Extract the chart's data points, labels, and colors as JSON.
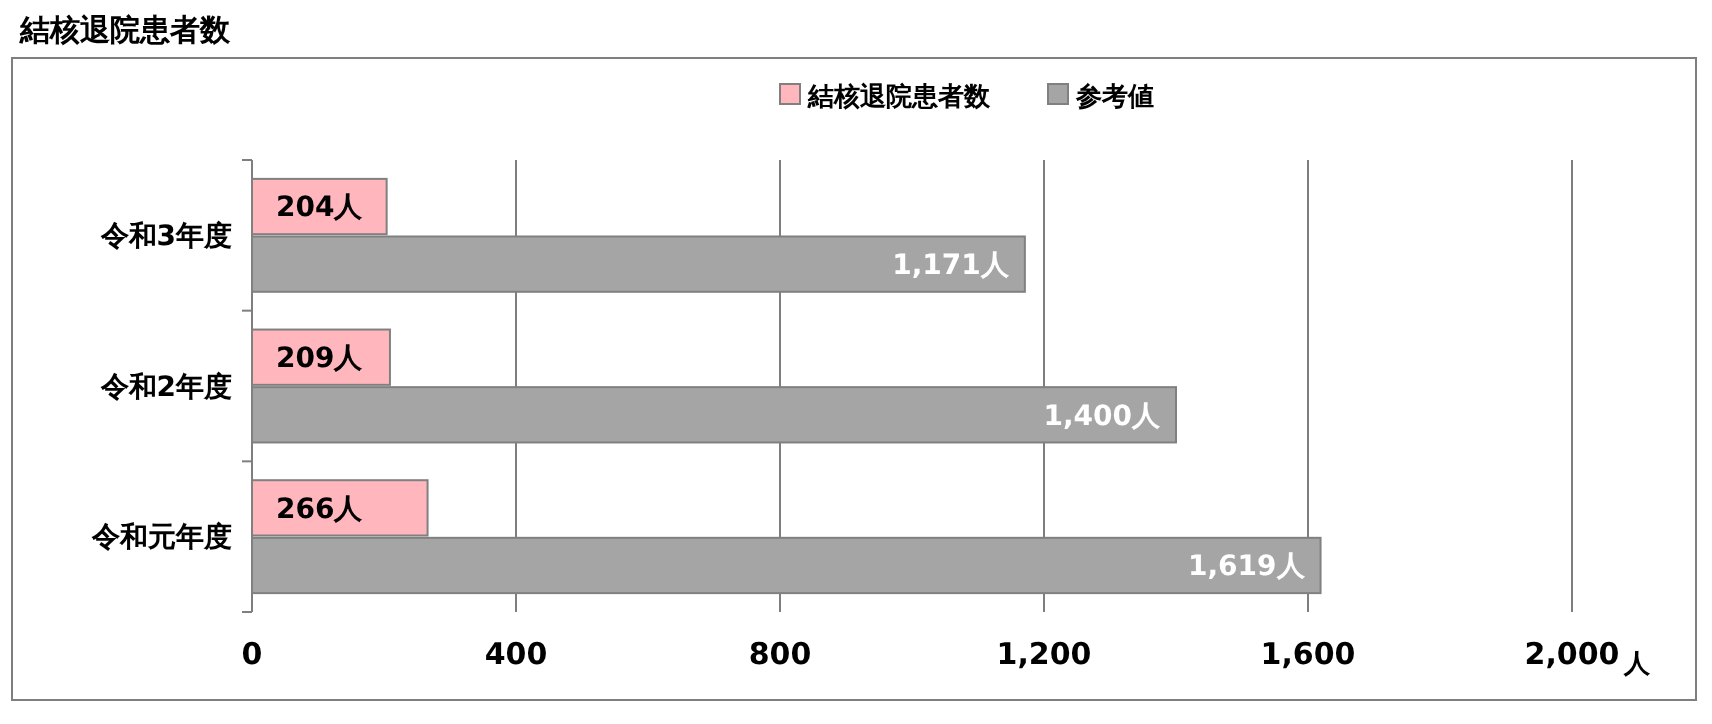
{
  "chart_data": {
    "type": "bar",
    "title": "結核退院患者数",
    "orientation": "horizontal",
    "categories": [
      "令和3年度",
      "令和2年度",
      "令和元年度"
    ],
    "series": [
      {
        "name": "結核退院患者数",
        "color": "#ffb7bd",
        "values": [
          204,
          209,
          266
        ],
        "value_labels": [
          "204人",
          "209人",
          "266人"
        ]
      },
      {
        "name": "参考値",
        "color": "#a5a5a5",
        "values": [
          1171,
          1400,
          1619
        ],
        "value_labels": [
          "1,171人",
          "1,400人",
          "1,619人"
        ]
      }
    ],
    "xlim": [
      0,
      2000
    ],
    "xticks": [
      0,
      400,
      800,
      {
        "value": 1200,
        "label": "1,200"
      },
      {
        "value": 1600,
        "label": "1,600"
      },
      {
        "value": 2000,
        "label": "2,000"
      }
    ],
    "xlabel": "人",
    "grid": "x",
    "legend": "top"
  }
}
